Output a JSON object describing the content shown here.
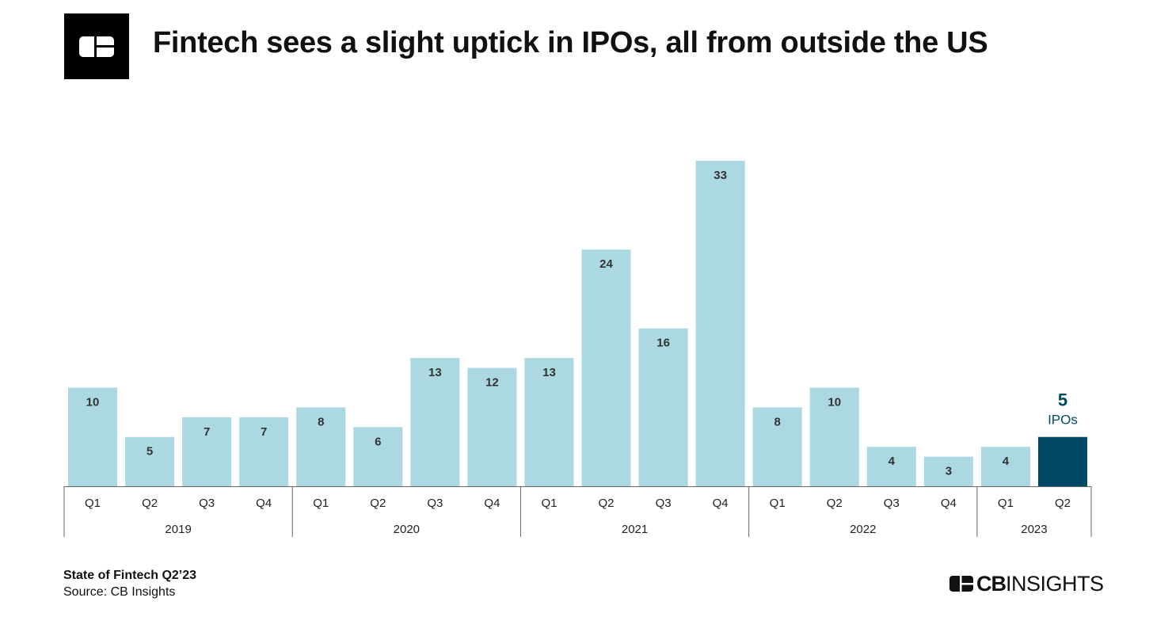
{
  "header": {
    "title": "Fintech sees a slight uptick in IPOs, all from outside the US",
    "logo_icon": "cb-insights-logo-icon"
  },
  "footer": {
    "report": "State of Fintech Q2’23",
    "source": "Source: CB Insights",
    "brand_bold": "CB",
    "brand_regular": "INSIGHTS"
  },
  "chart_data": {
    "type": "bar",
    "title": "Fintech sees a slight uptick in IPOs, all from outside the US",
    "xlabel": "",
    "ylabel": "",
    "ylim": [
      0,
      33
    ],
    "grid": false,
    "legend": "none",
    "colors": {
      "default": "#acd8e1",
      "highlight": "#004a67",
      "label": "#333333",
      "axis": "#666666"
    },
    "categories": [
      "Q1",
      "Q2",
      "Q3",
      "Q4",
      "Q1",
      "Q2",
      "Q3",
      "Q4",
      "Q1",
      "Q2",
      "Q3",
      "Q4",
      "Q1",
      "Q2",
      "Q3",
      "Q4",
      "Q1",
      "Q2"
    ],
    "years": [
      {
        "label": "2019",
        "count": 4
      },
      {
        "label": "2020",
        "count": 4
      },
      {
        "label": "2021",
        "count": 4
      },
      {
        "label": "2022",
        "count": 4
      },
      {
        "label": "2023",
        "count": 2
      }
    ],
    "values": [
      10,
      5,
      7,
      7,
      8,
      6,
      13,
      12,
      13,
      24,
      16,
      33,
      8,
      10,
      4,
      3,
      4,
      5
    ],
    "highlight_index": 17,
    "highlight_annotation": {
      "value": "5",
      "unit": "IPOs"
    }
  }
}
